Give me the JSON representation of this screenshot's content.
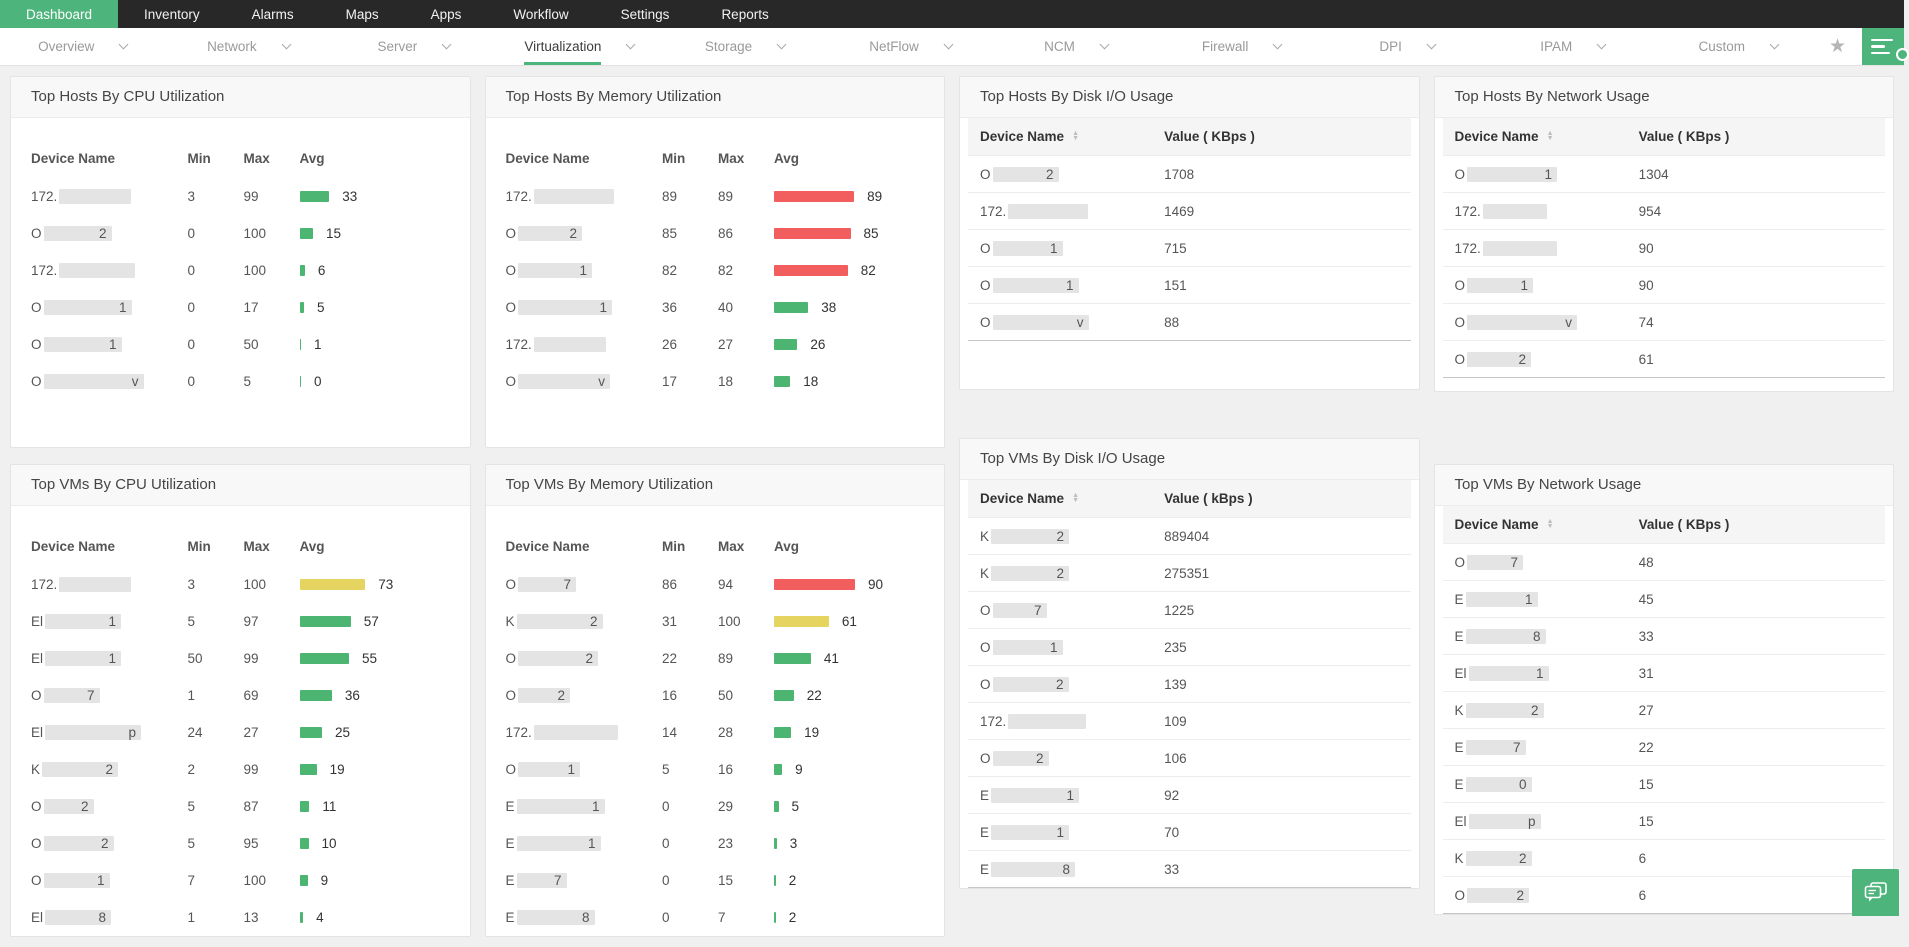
{
  "nav": {
    "items": [
      {
        "label": "Dashboard",
        "active": true
      },
      {
        "label": "Inventory",
        "active": false
      },
      {
        "label": "Alarms",
        "active": false
      },
      {
        "label": "Maps",
        "active": false
      },
      {
        "label": "Apps",
        "active": false
      },
      {
        "label": "Workflow",
        "active": false
      },
      {
        "label": "Settings",
        "active": false
      },
      {
        "label": "Reports",
        "active": false
      }
    ]
  },
  "tabbar": {
    "tabs": [
      {
        "label": "Overview",
        "active": false
      },
      {
        "label": "Network",
        "active": false
      },
      {
        "label": "Server",
        "active": false
      },
      {
        "label": "Virtualization",
        "active": true
      },
      {
        "label": "Storage",
        "active": false
      },
      {
        "label": "NetFlow",
        "active": false
      },
      {
        "label": "NCM",
        "active": false
      },
      {
        "label": "Firewall",
        "active": false
      },
      {
        "label": "DPI",
        "active": false
      },
      {
        "label": "IPAM",
        "active": false
      },
      {
        "label": "Custom",
        "active": false
      }
    ],
    "star_icon": "★",
    "widget_button_icon": "widget-menu"
  },
  "colors": {
    "accent_green": "#4db47c",
    "bar_green": "#4cb572",
    "bar_yellow": "#e5d45f",
    "bar_red": "#f25e5e",
    "nav_bg": "#282828"
  },
  "cards": {
    "hosts_cpu": {
      "title": "Top Hosts By CPU Utilization",
      "type": "bars",
      "columns": {
        "name": "Device Name",
        "min": "Min",
        "max": "Max",
        "avg": "Avg"
      },
      "rows": [
        {
          "prefix": "172.",
          "suffix": "",
          "w": 72,
          "min": 3,
          "max": 99,
          "avg": 33,
          "color": "green"
        },
        {
          "prefix": "O",
          "suffix": "2",
          "w": 68,
          "min": 0,
          "max": 100,
          "avg": 15,
          "color": "green"
        },
        {
          "prefix": "172.",
          "suffix": "",
          "w": 76,
          "min": 0,
          "max": 100,
          "avg": 6,
          "color": "green"
        },
        {
          "prefix": "O",
          "suffix": "1",
          "w": 88,
          "min": 0,
          "max": 17,
          "avg": 5,
          "color": "green"
        },
        {
          "prefix": "O",
          "suffix": "1",
          "w": 78,
          "min": 0,
          "max": 50,
          "avg": 1,
          "color": "green"
        },
        {
          "prefix": "O",
          "suffix": "v",
          "w": 100,
          "min": 0,
          "max": 5,
          "avg": 0,
          "color": "green"
        }
      ]
    },
    "hosts_mem": {
      "title": "Top Hosts By Memory Utilization",
      "type": "bars",
      "columns": {
        "name": "Device Name",
        "min": "Min",
        "max": "Max",
        "avg": "Avg"
      },
      "rows": [
        {
          "prefix": "172.",
          "suffix": "",
          "w": 80,
          "min": 89,
          "max": 89,
          "avg": 89,
          "color": "red"
        },
        {
          "prefix": "O",
          "suffix": "2",
          "w": 64,
          "min": 85,
          "max": 86,
          "avg": 85,
          "color": "red"
        },
        {
          "prefix": "O",
          "suffix": "1",
          "w": 74,
          "min": 82,
          "max": 82,
          "avg": 82,
          "color": "red"
        },
        {
          "prefix": "O",
          "suffix": "1",
          "w": 94,
          "min": 36,
          "max": 40,
          "avg": 38,
          "color": "green"
        },
        {
          "prefix": "172.",
          "suffix": "",
          "w": 72,
          "min": 26,
          "max": 27,
          "avg": 26,
          "color": "green"
        },
        {
          "prefix": "O",
          "suffix": "v",
          "w": 92,
          "min": 17,
          "max": 18,
          "avg": 18,
          "color": "green"
        }
      ]
    },
    "hosts_disk": {
      "title": "Top Hosts By Disk I/O Usage",
      "type": "values",
      "columns": {
        "name": "Device Name",
        "value": "Value ( KBps )"
      },
      "sortable": true,
      "rows": [
        {
          "prefix": "O",
          "suffix": "2",
          "w": 66,
          "value": "1708"
        },
        {
          "prefix": "172.",
          "suffix": "",
          "w": 80,
          "value": "1469"
        },
        {
          "prefix": "O",
          "suffix": "1",
          "w": 70,
          "value": "715"
        },
        {
          "prefix": "O",
          "suffix": "1",
          "w": 86,
          "value": "151"
        },
        {
          "prefix": "O",
          "suffix": "v",
          "w": 96,
          "value": "88"
        }
      ]
    },
    "hosts_net": {
      "title": "Top Hosts By Network Usage",
      "type": "values",
      "columns": {
        "name": "Device Name",
        "value": "Value ( KBps )"
      },
      "sortable": true,
      "rows": [
        {
          "prefix": "O",
          "suffix": "1",
          "w": 90,
          "value": "1304"
        },
        {
          "prefix": "172.",
          "suffix": "",
          "w": 64,
          "value": "954"
        },
        {
          "prefix": "172.",
          "suffix": "",
          "w": 74,
          "value": "90"
        },
        {
          "prefix": "O",
          "suffix": "1",
          "w": 66,
          "value": "90"
        },
        {
          "prefix": "O",
          "suffix": "v",
          "w": 110,
          "value": "74"
        },
        {
          "prefix": "O",
          "suffix": "2",
          "w": 64,
          "value": "61"
        }
      ]
    },
    "vms_cpu": {
      "title": "Top VMs By CPU Utilization",
      "type": "bars",
      "columns": {
        "name": "Device Name",
        "min": "Min",
        "max": "Max",
        "avg": "Avg"
      },
      "rows": [
        {
          "prefix": "172.",
          "suffix": "",
          "w": 72,
          "min": 3,
          "max": 100,
          "avg": 73,
          "color": "yellow"
        },
        {
          "prefix": "El",
          "suffix": "1",
          "w": 76,
          "min": 5,
          "max": 97,
          "avg": 57,
          "color": "green"
        },
        {
          "prefix": "El",
          "suffix": "1",
          "w": 76,
          "min": 50,
          "max": 99,
          "avg": 55,
          "color": "green"
        },
        {
          "prefix": "O",
          "suffix": "7",
          "w": 56,
          "min": 1,
          "max": 69,
          "avg": 36,
          "color": "green"
        },
        {
          "prefix": "El",
          "suffix": "p",
          "w": 96,
          "min": 24,
          "max": 27,
          "avg": 25,
          "color": "green"
        },
        {
          "prefix": "K",
          "suffix": "2",
          "w": 76,
          "min": 2,
          "max": 99,
          "avg": 19,
          "color": "green"
        },
        {
          "prefix": "O",
          "suffix": "2",
          "w": 50,
          "min": 5,
          "max": 87,
          "avg": 11,
          "color": "green"
        },
        {
          "prefix": "O",
          "suffix": "2",
          "w": 70,
          "min": 5,
          "max": 95,
          "avg": 10,
          "color": "green"
        },
        {
          "prefix": "O",
          "suffix": "1",
          "w": 66,
          "min": 7,
          "max": 100,
          "avg": 9,
          "color": "green"
        },
        {
          "prefix": "El",
          "suffix": "8",
          "w": 66,
          "min": 1,
          "max": 13,
          "avg": 4,
          "color": "green"
        }
      ]
    },
    "vms_mem": {
      "title": "Top VMs By Memory Utilization",
      "type": "bars",
      "columns": {
        "name": "Device Name",
        "min": "Min",
        "max": "Max",
        "avg": "Avg"
      },
      "rows": [
        {
          "prefix": "O",
          "suffix": "7",
          "w": 58,
          "min": 86,
          "max": 94,
          "avg": 90,
          "color": "red"
        },
        {
          "prefix": "K",
          "suffix": "2",
          "w": 86,
          "min": 31,
          "max": 100,
          "avg": 61,
          "color": "yellow"
        },
        {
          "prefix": "O",
          "suffix": "2",
          "w": 80,
          "min": 22,
          "max": 89,
          "avg": 41,
          "color": "green"
        },
        {
          "prefix": "O",
          "suffix": "2",
          "w": 52,
          "min": 16,
          "max": 50,
          "avg": 22,
          "color": "green"
        },
        {
          "prefix": "172.",
          "suffix": "",
          "w": 84,
          "min": 14,
          "max": 28,
          "avg": 19,
          "color": "green"
        },
        {
          "prefix": "O",
          "suffix": "1",
          "w": 62,
          "min": 5,
          "max": 16,
          "avg": 9,
          "color": "green"
        },
        {
          "prefix": "E",
          "suffix": "1",
          "w": 88,
          "min": 0,
          "max": 29,
          "avg": 5,
          "color": "green"
        },
        {
          "prefix": "E",
          "suffix": "1",
          "w": 84,
          "min": 0,
          "max": 23,
          "avg": 3,
          "color": "green"
        },
        {
          "prefix": "E",
          "suffix": "7",
          "w": 50,
          "min": 0,
          "max": 15,
          "avg": 2,
          "color": "green"
        },
        {
          "prefix": "E",
          "suffix": "8",
          "w": 78,
          "min": 0,
          "max": 7,
          "avg": 2,
          "color": "green"
        }
      ]
    },
    "vms_disk": {
      "title": "Top VMs By Disk I/O Usage",
      "type": "values",
      "columns": {
        "name": "Device Name",
        "value": "Value ( kBps )"
      },
      "sortable": true,
      "rows": [
        {
          "prefix": "K",
          "suffix": "2",
          "w": 78,
          "value": "889404"
        },
        {
          "prefix": "K",
          "suffix": "2",
          "w": 78,
          "value": "275351"
        },
        {
          "prefix": "O",
          "suffix": "7",
          "w": 54,
          "value": "1225"
        },
        {
          "prefix": "O",
          "suffix": "1",
          "w": 70,
          "value": "235"
        },
        {
          "prefix": "O",
          "suffix": "2",
          "w": 76,
          "value": "139"
        },
        {
          "prefix": "172.",
          "suffix": "",
          "w": 78,
          "value": "109"
        },
        {
          "prefix": "O",
          "suffix": "2",
          "w": 56,
          "value": "106"
        },
        {
          "prefix": "E",
          "suffix": "1",
          "w": 88,
          "value": "92"
        },
        {
          "prefix": "E",
          "suffix": "1",
          "w": 78,
          "value": "70"
        },
        {
          "prefix": "E",
          "suffix": "8",
          "w": 84,
          "value": "33"
        }
      ]
    },
    "vms_net": {
      "title": "Top VMs By Network Usage",
      "type": "values",
      "columns": {
        "name": "Device Name",
        "value": "Value ( KBps )"
      },
      "sortable": true,
      "rows": [
        {
          "prefix": "O",
          "suffix": "7",
          "w": 56,
          "value": "48"
        },
        {
          "prefix": "E",
          "suffix": "1",
          "w": 72,
          "value": "45"
        },
        {
          "prefix": "E",
          "suffix": "8",
          "w": 80,
          "value": "33"
        },
        {
          "prefix": "El",
          "suffix": "1",
          "w": 80,
          "value": "31"
        },
        {
          "prefix": "K",
          "suffix": "2",
          "w": 78,
          "value": "27"
        },
        {
          "prefix": "E",
          "suffix": "7",
          "w": 60,
          "value": "22"
        },
        {
          "prefix": "E",
          "suffix": "0",
          "w": 66,
          "value": "15"
        },
        {
          "prefix": "El",
          "suffix": "p",
          "w": 72,
          "value": "15"
        },
        {
          "prefix": "K",
          "suffix": "2",
          "w": 66,
          "value": "6"
        },
        {
          "prefix": "O",
          "suffix": "2",
          "w": 62,
          "value": "6"
        }
      ]
    }
  },
  "floating": {
    "chat_button_icon": "chat-bubbles"
  }
}
